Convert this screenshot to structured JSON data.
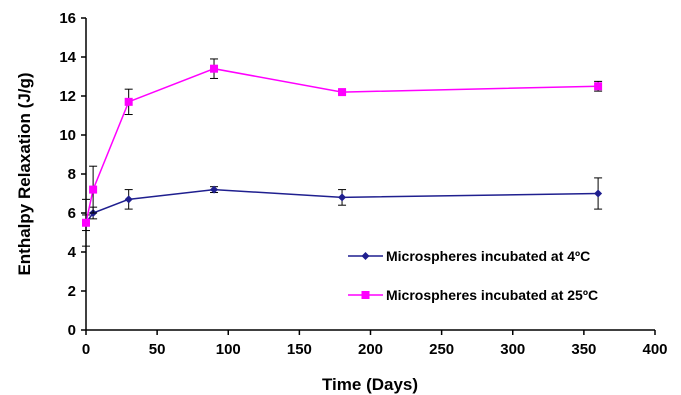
{
  "chart_data": {
    "type": "line",
    "xlabel": "Time (Days)",
    "ylabel": "Enthalpy Relaxation (J/g)",
    "xlim": [
      0,
      400
    ],
    "ylim": [
      0,
      16
    ],
    "xticks": [
      "0",
      "50",
      "100",
      "150",
      "200",
      "250",
      "300",
      "350",
      "400"
    ],
    "yticks": [
      "0",
      "2",
      "4",
      "6",
      "8",
      "10",
      "12",
      "14",
      "16"
    ],
    "grid": false,
    "legend_position": "right",
    "series": [
      {
        "name": "Microspheres incubated at 4ºC",
        "color": "#1f1f8f",
        "marker": "diamond",
        "x": [
          0,
          5,
          30,
          90,
          180,
          360
        ],
        "y": [
          5.5,
          6.0,
          6.7,
          7.2,
          6.8,
          7.0
        ],
        "err": [
          0.4,
          0.3,
          0.5,
          0.15,
          0.4,
          0.8
        ]
      },
      {
        "name": "Microspheres incubated at 25ºC",
        "color": "#ff00ff",
        "marker": "square",
        "x": [
          0,
          5,
          30,
          90,
          180,
          360
        ],
        "y": [
          5.5,
          7.2,
          11.7,
          13.4,
          12.2,
          12.5
        ],
        "err": [
          1.2,
          1.2,
          0.65,
          0.5,
          0.1,
          0.25
        ]
      }
    ]
  }
}
